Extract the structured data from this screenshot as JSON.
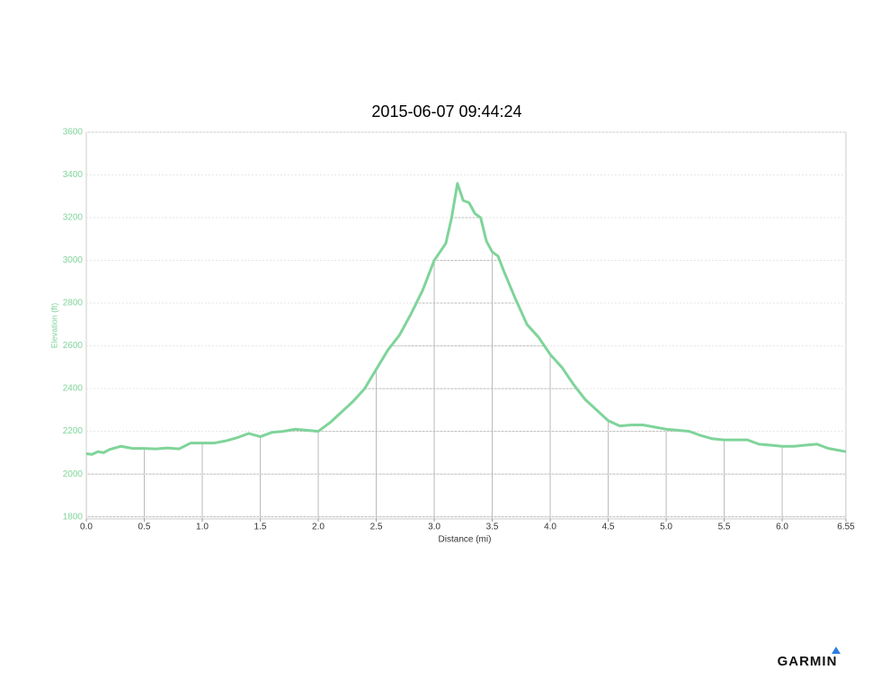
{
  "chart_data": {
    "type": "line",
    "title": "2015-06-07 09:44:24",
    "x_label": "Distance (mi)",
    "y_label": "Elevation (ft)",
    "brand": "GARMIN",
    "color": "#7fd49a",
    "grid": true,
    "xlim": [
      0,
      6.55
    ],
    "ylim": [
      1790,
      3600
    ],
    "xticks": [
      {
        "value": 0,
        "label": "0.0"
      },
      0.5,
      {
        "value": 1,
        "label": "1.0"
      },
      1.5,
      {
        "value": 2,
        "label": "2.0"
      },
      2.5,
      {
        "value": 3,
        "label": "3.0"
      },
      3.5,
      {
        "value": 4,
        "label": "4.0"
      },
      4.5,
      {
        "value": 5,
        "label": "5.0"
      },
      5.5,
      {
        "value": 6,
        "label": "6.0"
      },
      6.55
    ],
    "yticks": [
      1800,
      2000,
      2200,
      2400,
      2600,
      2800,
      3000,
      3200,
      3400,
      3600
    ],
    "x": [
      0,
      0.05,
      0.1,
      0.15,
      0.2,
      0.3,
      0.4,
      0.5,
      0.6,
      0.7,
      0.8,
      0.9,
      1.0,
      1.1,
      1.2,
      1.3,
      1.4,
      1.5,
      1.6,
      1.7,
      1.8,
      1.9,
      2.0,
      2.1,
      2.2,
      2.3,
      2.4,
      2.5,
      2.6,
      2.7,
      2.8,
      2.9,
      3.0,
      3.1,
      3.15,
      3.2,
      3.25,
      3.3,
      3.35,
      3.4,
      3.45,
      3.5,
      3.55,
      3.6,
      3.7,
      3.8,
      3.9,
      4.0,
      4.1,
      4.2,
      4.3,
      4.4,
      4.5,
      4.6,
      4.7,
      4.8,
      4.9,
      5.0,
      5.1,
      5.2,
      5.3,
      5.4,
      5.5,
      5.6,
      5.7,
      5.8,
      5.9,
      6.0,
      6.1,
      6.2,
      6.3,
      6.4,
      6.5,
      6.55
    ],
    "values": [
      2095,
      2092,
      2105,
      2100,
      2115,
      2130,
      2120,
      2120,
      2118,
      2122,
      2118,
      2145,
      2145,
      2145,
      2155,
      2170,
      2190,
      2175,
      2195,
      2200,
      2210,
      2205,
      2200,
      2240,
      2290,
      2340,
      2400,
      2490,
      2580,
      2650,
      2750,
      2860,
      3000,
      3080,
      3200,
      3360,
      3280,
      3270,
      3220,
      3200,
      3090,
      3040,
      3020,
      2950,
      2820,
      2700,
      2640,
      2560,
      2500,
      2420,
      2350,
      2300,
      2250,
      2225,
      2230,
      2230,
      2220,
      2210,
      2205,
      2200,
      2180,
      2165,
      2160,
      2160,
      2160,
      2140,
      2135,
      2130,
      2130,
      2135,
      2140,
      2120,
      2110,
      2105
    ]
  }
}
